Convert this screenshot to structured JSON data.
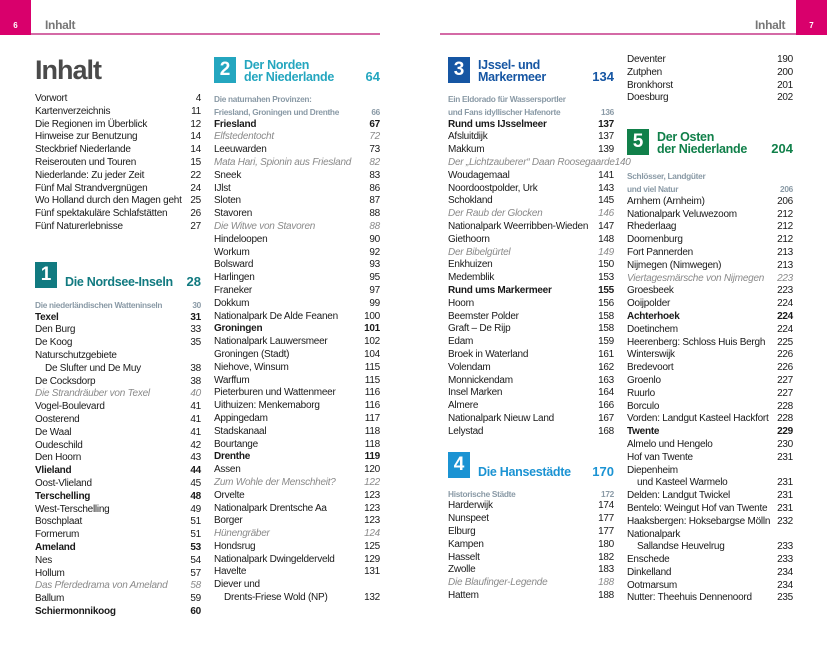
{
  "header": {
    "left_page": "6",
    "right_page": "7",
    "running_title": "Inhalt",
    "accent": "#d9006c"
  },
  "title": "Inhalt",
  "intro": [
    {
      "t": "Vorwort",
      "p": "4"
    },
    {
      "t": "Kartenverzeichnis",
      "p": "11"
    },
    {
      "t": "Die Regionen im Überblick",
      "p": "12"
    },
    {
      "t": "Hinweise zur Benutzung",
      "p": "14"
    },
    {
      "t": "Steckbrief Niederlande",
      "p": "14"
    },
    {
      "t": "Reiserouten und Touren",
      "p": "15"
    },
    {
      "t": "Niederlande: Zu jeder Zeit",
      "p": "22"
    },
    {
      "t": "Fünf Mal Strandvergnügen",
      "p": "24"
    },
    {
      "t": "Wo Holland durch den Magen geht",
      "p": "25"
    },
    {
      "t": "Fünf spektakuläre Schlafstätten",
      "p": "26"
    },
    {
      "t": "Fünf Naturerlebnisse",
      "p": "27"
    }
  ],
  "sections": [
    {
      "num": "1",
      "title": "Die Nordsee-Inseln",
      "title2": "",
      "page": "28",
      "color": "#117a80",
      "entries": [
        {
          "t": "Die niederländischen Watteninseln",
          "p": "30",
          "s": "s"
        },
        {
          "t": "Texel",
          "p": "31",
          "s": "b"
        },
        {
          "t": "Den Burg",
          "p": "33"
        },
        {
          "t": "De Koog",
          "p": "35"
        },
        {
          "t": "Naturschutzgebiete",
          "p": ""
        },
        {
          "t": "De Slufter und De Muy",
          "p": "38",
          "s": "ind"
        },
        {
          "t": "De Cocksdorp",
          "p": "38"
        },
        {
          "t": "Die Strandräuber von Texel",
          "p": "40",
          "s": "i"
        },
        {
          "t": "Vogel-Boulevard",
          "p": "41"
        },
        {
          "t": "Oosterend",
          "p": "41"
        },
        {
          "t": "De Waal",
          "p": "41"
        },
        {
          "t": "Oudeschild",
          "p": "42"
        },
        {
          "t": "Den Hoorn",
          "p": "43"
        },
        {
          "t": "Vlieland",
          "p": "44",
          "s": "b"
        },
        {
          "t": "Oost-Vlieland",
          "p": "45"
        },
        {
          "t": "Terschelling",
          "p": "48",
          "s": "b"
        },
        {
          "t": "West-Terschelling",
          "p": "49"
        },
        {
          "t": "Boschplaat",
          "p": "51"
        },
        {
          "t": "Formerum",
          "p": "51"
        },
        {
          "t": "Ameland",
          "p": "53",
          "s": "b"
        },
        {
          "t": "Nes",
          "p": "54"
        },
        {
          "t": "Hollum",
          "p": "57"
        },
        {
          "t": "Das Pferdedrama von Ameland",
          "p": "58",
          "s": "i"
        },
        {
          "t": "Ballum",
          "p": "59"
        },
        {
          "t": "Schiermonnikoog",
          "p": "60",
          "s": "b"
        }
      ]
    },
    {
      "num": "2",
      "title": "Der Norden",
      "title2": "der Niederlande",
      "page": "64",
      "color": "#24a6bf",
      "entries": [
        {
          "t": "Die naturnahen Provinzen:",
          "p": "",
          "s": "s"
        },
        {
          "t": "Friesland, Groningen und Drenthe",
          "p": "66",
          "s": "s"
        },
        {
          "t": "Friesland",
          "p": "67",
          "s": "b"
        },
        {
          "t": "Elfstedentocht",
          "p": "72",
          "s": "i"
        },
        {
          "t": "Leeuwarden",
          "p": "73"
        },
        {
          "t": "Mata Hari, Spionin aus Friesland",
          "p": "82",
          "s": "i"
        },
        {
          "t": "Sneek",
          "p": "83"
        },
        {
          "t": "IJlst",
          "p": "86"
        },
        {
          "t": "Sloten",
          "p": "87"
        },
        {
          "t": "Stavoren",
          "p": "88"
        },
        {
          "t": "Die Witwe von Stavoren",
          "p": "88",
          "s": "i"
        },
        {
          "t": "Hindeloopen",
          "p": "90"
        },
        {
          "t": "Workum",
          "p": "92"
        },
        {
          "t": "Bolsward",
          "p": "93"
        },
        {
          "t": "Harlingen",
          "p": "95"
        },
        {
          "t": "Franeker",
          "p": "97"
        },
        {
          "t": "Dokkum",
          "p": "99"
        },
        {
          "t": "Nationalpark De Alde Feanen",
          "p": "100"
        },
        {
          "t": "Groningen",
          "p": "101",
          "s": "b"
        },
        {
          "t": "Nationalpark Lauwersmeer",
          "p": "102"
        },
        {
          "t": "Groningen (Stadt)",
          "p": "104"
        },
        {
          "t": "Niehove, Winsum",
          "p": "115"
        },
        {
          "t": "Warffum",
          "p": "115"
        },
        {
          "t": "Pieterburen und Wattenmeer",
          "p": "116"
        },
        {
          "t": "Uithuizen: Menkemaborg",
          "p": "116"
        },
        {
          "t": "Appingedam",
          "p": "117"
        },
        {
          "t": "Stadskanaal",
          "p": "118"
        },
        {
          "t": "Bourtange",
          "p": "118"
        },
        {
          "t": "Drenthe",
          "p": "119",
          "s": "b"
        },
        {
          "t": "Assen",
          "p": "120"
        },
        {
          "t": "Zum Wohle der Menschheit?",
          "p": "122",
          "s": "i"
        },
        {
          "t": "Orvelte",
          "p": "123"
        },
        {
          "t": "Nationalpark Drentsche Aa",
          "p": "123"
        },
        {
          "t": "Borger",
          "p": "123"
        },
        {
          "t": "Hünengräber",
          "p": "124",
          "s": "i"
        },
        {
          "t": "Hondsrug",
          "p": "125"
        },
        {
          "t": "Nationalpark Dwingelderveld",
          "p": "129"
        },
        {
          "t": "Havelte",
          "p": "131"
        },
        {
          "t": "Diever und",
          "p": ""
        },
        {
          "t": "Drents-Friese Wold (NP)",
          "p": "132",
          "s": "ind"
        }
      ]
    },
    {
      "num": "3",
      "title": "IJssel- und",
      "title2": "Markermeer",
      "page": "134",
      "color": "#1656a3",
      "entries": [
        {
          "t": "Ein Eldorado für Wassersportler",
          "p": "",
          "s": "s"
        },
        {
          "t": "und Fans idyllischer Hafenorte",
          "p": "136",
          "s": "s"
        },
        {
          "t": "Rund ums IJsselmeer",
          "p": "137",
          "s": "b"
        },
        {
          "t": "Afsluitdijk",
          "p": "137"
        },
        {
          "t": "Makkum",
          "p": "139"
        },
        {
          "t": "Der „Lichtzauberer“ Daan Roosegaarde",
          "p": "140",
          "s": "i"
        },
        {
          "t": "Woudagemaal",
          "p": "141"
        },
        {
          "t": "Noordoostpolder, Urk",
          "p": "143"
        },
        {
          "t": "Schokland",
          "p": "145"
        },
        {
          "t": "Der Raub der Glocken",
          "p": "146",
          "s": "i"
        },
        {
          "t": "Nationalpark Weerribben-Wieden",
          "p": "147"
        },
        {
          "t": "Giethoorn",
          "p": "148"
        },
        {
          "t": "Der Bibelgürtel",
          "p": "149",
          "s": "i"
        },
        {
          "t": "Enkhuizen",
          "p": "150"
        },
        {
          "t": "Medemblik",
          "p": "153"
        },
        {
          "t": "Rund ums Markermeer",
          "p": "155",
          "s": "b"
        },
        {
          "t": "Hoorn",
          "p": "156"
        },
        {
          "t": "Beemster Polder",
          "p": "158"
        },
        {
          "t": "Graft – De Rijp",
          "p": "158"
        },
        {
          "t": "Edam",
          "p": "159"
        },
        {
          "t": "Broek in Waterland",
          "p": "161"
        },
        {
          "t": "Volendam",
          "p": "162"
        },
        {
          "t": "Monnickendam",
          "p": "163"
        },
        {
          "t": "Insel Marken",
          "p": "164"
        },
        {
          "t": "Almere",
          "p": "166"
        },
        {
          "t": "Nationalpark Nieuw Land",
          "p": "167"
        },
        {
          "t": "Lelystad",
          "p": "168"
        }
      ]
    },
    {
      "num": "4",
      "title": "Die Hansestädte",
      "title2": "",
      "page": "170",
      "color": "#1b93d3",
      "entries": [
        {
          "t": "Historische Städte",
          "p": "172",
          "s": "s"
        },
        {
          "t": "Harderwijk",
          "p": "174"
        },
        {
          "t": "Nunspeet",
          "p": "177"
        },
        {
          "t": "Elburg",
          "p": "177"
        },
        {
          "t": "Kampen",
          "p": "180"
        },
        {
          "t": "Hasselt",
          "p": "182"
        },
        {
          "t": "Zwolle",
          "p": "183"
        },
        {
          "t": "Die Blaufinger-Legende",
          "p": "188",
          "s": "i"
        },
        {
          "t": "Hattem",
          "p": "188"
        },
        {
          "t": "Deventer",
          "p": "190"
        },
        {
          "t": "Zutphen",
          "p": "200"
        },
        {
          "t": "Bronkhorst",
          "p": "201"
        },
        {
          "t": "Doesburg",
          "p": "202"
        }
      ]
    },
    {
      "num": "5",
      "title": "Der Osten",
      "title2": "der Niederlande",
      "page": "204",
      "color": "#11804a",
      "entries": [
        {
          "t": "Schlösser, Landgüter",
          "p": "",
          "s": "s"
        },
        {
          "t": "und viel Natur",
          "p": "206",
          "s": "s"
        },
        {
          "t": "Arnhem (Arnheim)",
          "p": "206"
        },
        {
          "t": "Nationalpark Veluwezoom",
          "p": "212"
        },
        {
          "t": "Rhederlaag",
          "p": "212"
        },
        {
          "t": "Doornenburg",
          "p": "212"
        },
        {
          "t": "Fort Pannerden",
          "p": "213"
        },
        {
          "t": "Nijmegen (Nimwegen)",
          "p": "213"
        },
        {
          "t": "Viertagesmärsche von Nijmegen",
          "p": "223",
          "s": "i"
        },
        {
          "t": "Groesbeek",
          "p": "223"
        },
        {
          "t": "Ooijpolder",
          "p": "224"
        },
        {
          "t": "Achterhoek",
          "p": "224",
          "s": "b"
        },
        {
          "t": "Doetinchem",
          "p": "224"
        },
        {
          "t": "Heerenberg: Schloss Huis Bergh",
          "p": "225"
        },
        {
          "t": "Winterswijk",
          "p": "226"
        },
        {
          "t": "Bredevoort",
          "p": "226"
        },
        {
          "t": "Groenlo",
          "p": "227"
        },
        {
          "t": "Ruurlo",
          "p": "227"
        },
        {
          "t": "Borculo",
          "p": "228"
        },
        {
          "t": "Vorden: Landgut Kasteel Hackfort",
          "p": "228"
        },
        {
          "t": "Twente",
          "p": "229",
          "s": "b"
        },
        {
          "t": "Almelo und Hengelo",
          "p": "230"
        },
        {
          "t": "Hof van Twente",
          "p": "231"
        },
        {
          "t": "Diepenheim",
          "p": ""
        },
        {
          "t": "und Kasteel Warmelo",
          "p": "231",
          "s": "ind"
        },
        {
          "t": "Delden: Landgut Twickel",
          "p": "231"
        },
        {
          "t": "Bentelo: Weingut Hof van Twente",
          "p": "231"
        },
        {
          "t": "Haaksbergen: Hoksebargse Mölln",
          "p": "232"
        },
        {
          "t": "Nationalpark",
          "p": ""
        },
        {
          "t": "Sallandse Heuvelrug",
          "p": "233",
          "s": "ind"
        },
        {
          "t": "Enschede",
          "p": "233"
        },
        {
          "t": "Dinkelland",
          "p": "234"
        },
        {
          "t": "Ootmarsum",
          "p": "234"
        },
        {
          "t": "Nutter: Theehuis Dennenoord",
          "p": "235"
        }
      ]
    }
  ]
}
